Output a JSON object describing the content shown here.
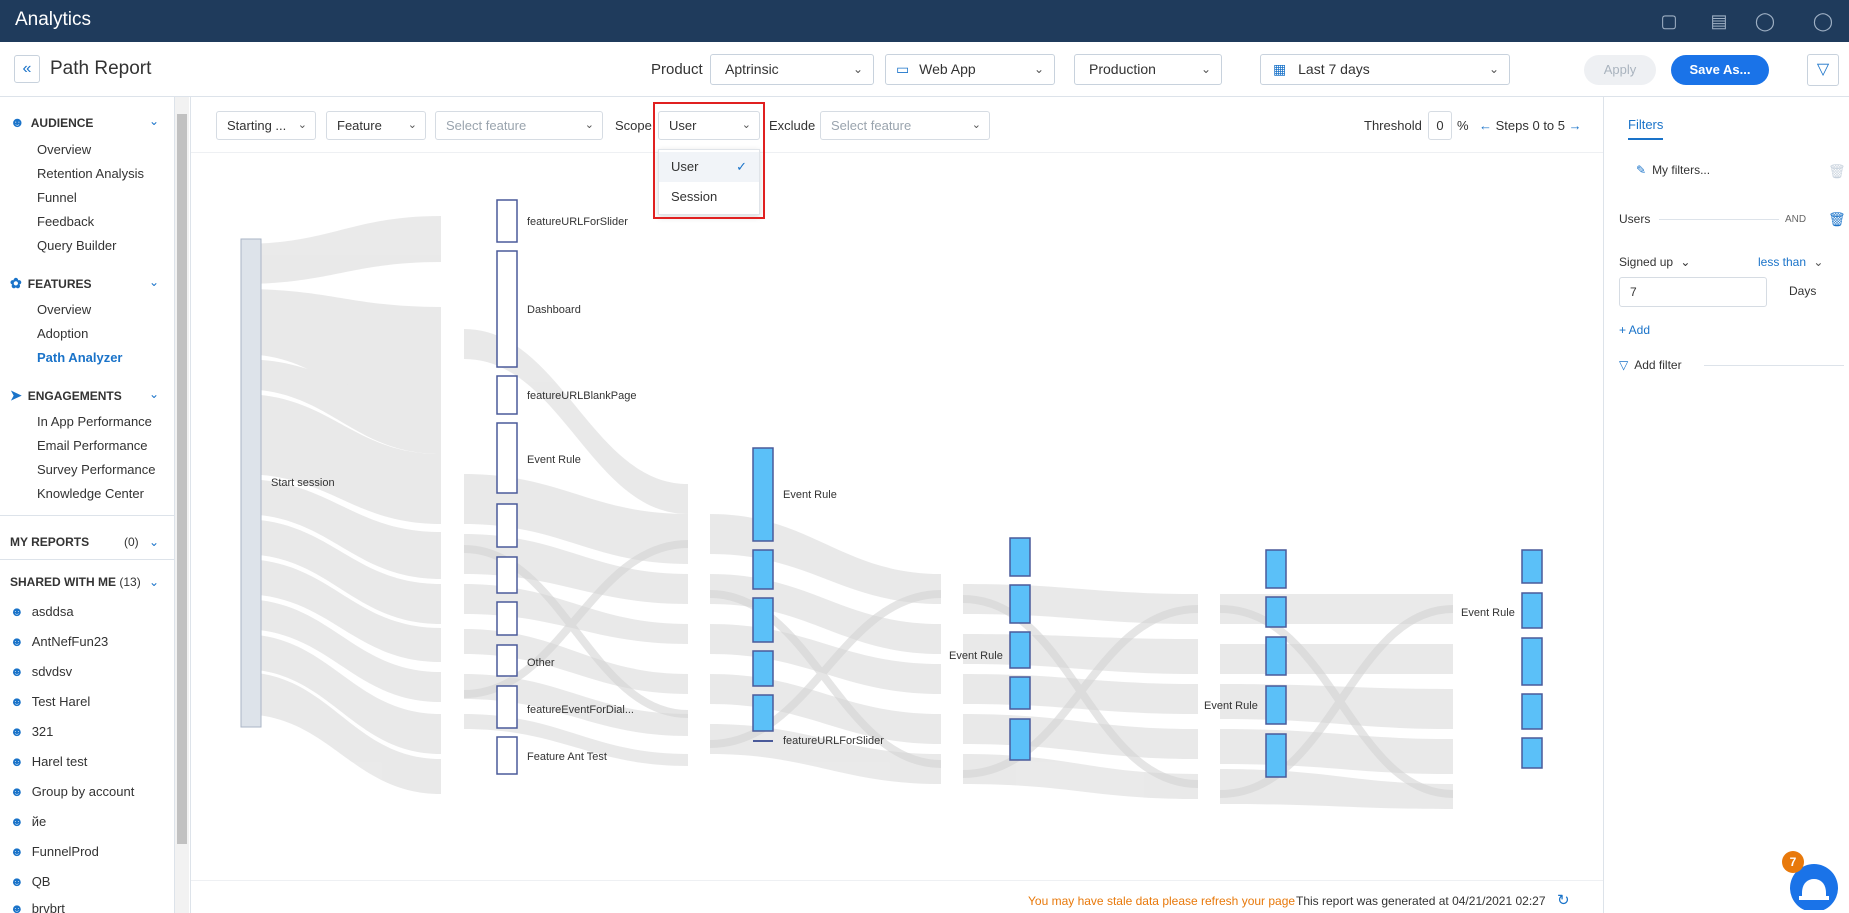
{
  "app": {
    "title": "Analytics"
  },
  "header": {
    "page_title": "Path Report",
    "product_label": "Product",
    "product_value": "Aptrinsic",
    "app_value": "Web App",
    "env_value": "Production",
    "date_value": "Last 7 days",
    "apply_label": "Apply",
    "save_label": "Save As..."
  },
  "sidebar": {
    "audience": {
      "label": "AUDIENCE",
      "items": [
        "Overview",
        "Retention Analysis",
        "Funnel",
        "Feedback",
        "Query Builder"
      ]
    },
    "features": {
      "label": "FEATURES",
      "items": [
        "Overview",
        "Adoption",
        "Path Analyzer"
      ],
      "active": "Path Analyzer"
    },
    "engagements": {
      "label": "ENGAGEMENTS",
      "items": [
        "In App Performance",
        "Email Performance",
        "Survey Performance",
        "Knowledge Center"
      ]
    },
    "my_reports": {
      "label": "MY REPORTS",
      "count": "(0)"
    },
    "shared": {
      "label": "SHARED WITH ME",
      "count": "(13)",
      "items": [
        "asddsa",
        "AntNefFun23",
        "sdvdsv",
        "Test Harel",
        "321",
        "Harel test",
        "Group by account",
        "йе",
        "FunnelProd",
        "QB",
        "brvbrt"
      ]
    }
  },
  "toolbar": {
    "start_value": "Starting ...",
    "type_value": "Feature",
    "feature_placeholder": "Select feature",
    "scope_label": "Scope",
    "scope_value": "User",
    "exclude_label": "Exclude",
    "exclude_placeholder": "Select feature",
    "threshold_label": "Threshold",
    "threshold_value": "0",
    "threshold_unit": "%",
    "steps_label": "Steps 0 to 5"
  },
  "scope_dropdown": {
    "options": [
      "User",
      "Session"
    ],
    "selected": "User"
  },
  "sankey": {
    "labels": {
      "start": "Start session",
      "s1": [
        "featureURLForSlider",
        "Dashboard",
        "featureURLBlankPage",
        "Event Rule",
        "",
        "",
        "",
        "Other",
        "featureEventForDial...",
        "Feature Ant Test"
      ],
      "s2_top": "Event Rule",
      "s2_bottom": "featureURLForSlider",
      "s3": "Event Rule",
      "s4": "Event Rule",
      "s5": "Event Rule"
    }
  },
  "footer": {
    "stale": "You may have stale data please refresh your page",
    "generated": "This report was generated at 04/21/2021 02:27"
  },
  "filters": {
    "tab": "Filters",
    "my_filters": "My filters...",
    "users": "Users",
    "and": "AND",
    "signed_up": "Signed up",
    "less_than": "less than",
    "value": "7",
    "unit": "Days",
    "add": "+ Add",
    "add_filter": "Add filter"
  },
  "notification": {
    "count": "7"
  },
  "colors": {
    "accent": "#1a73c9",
    "topbar": "#1f3b5c",
    "node_fill": "#5bc0f8",
    "node_border": "#4a5a9a",
    "stale": "#e8790b"
  }
}
